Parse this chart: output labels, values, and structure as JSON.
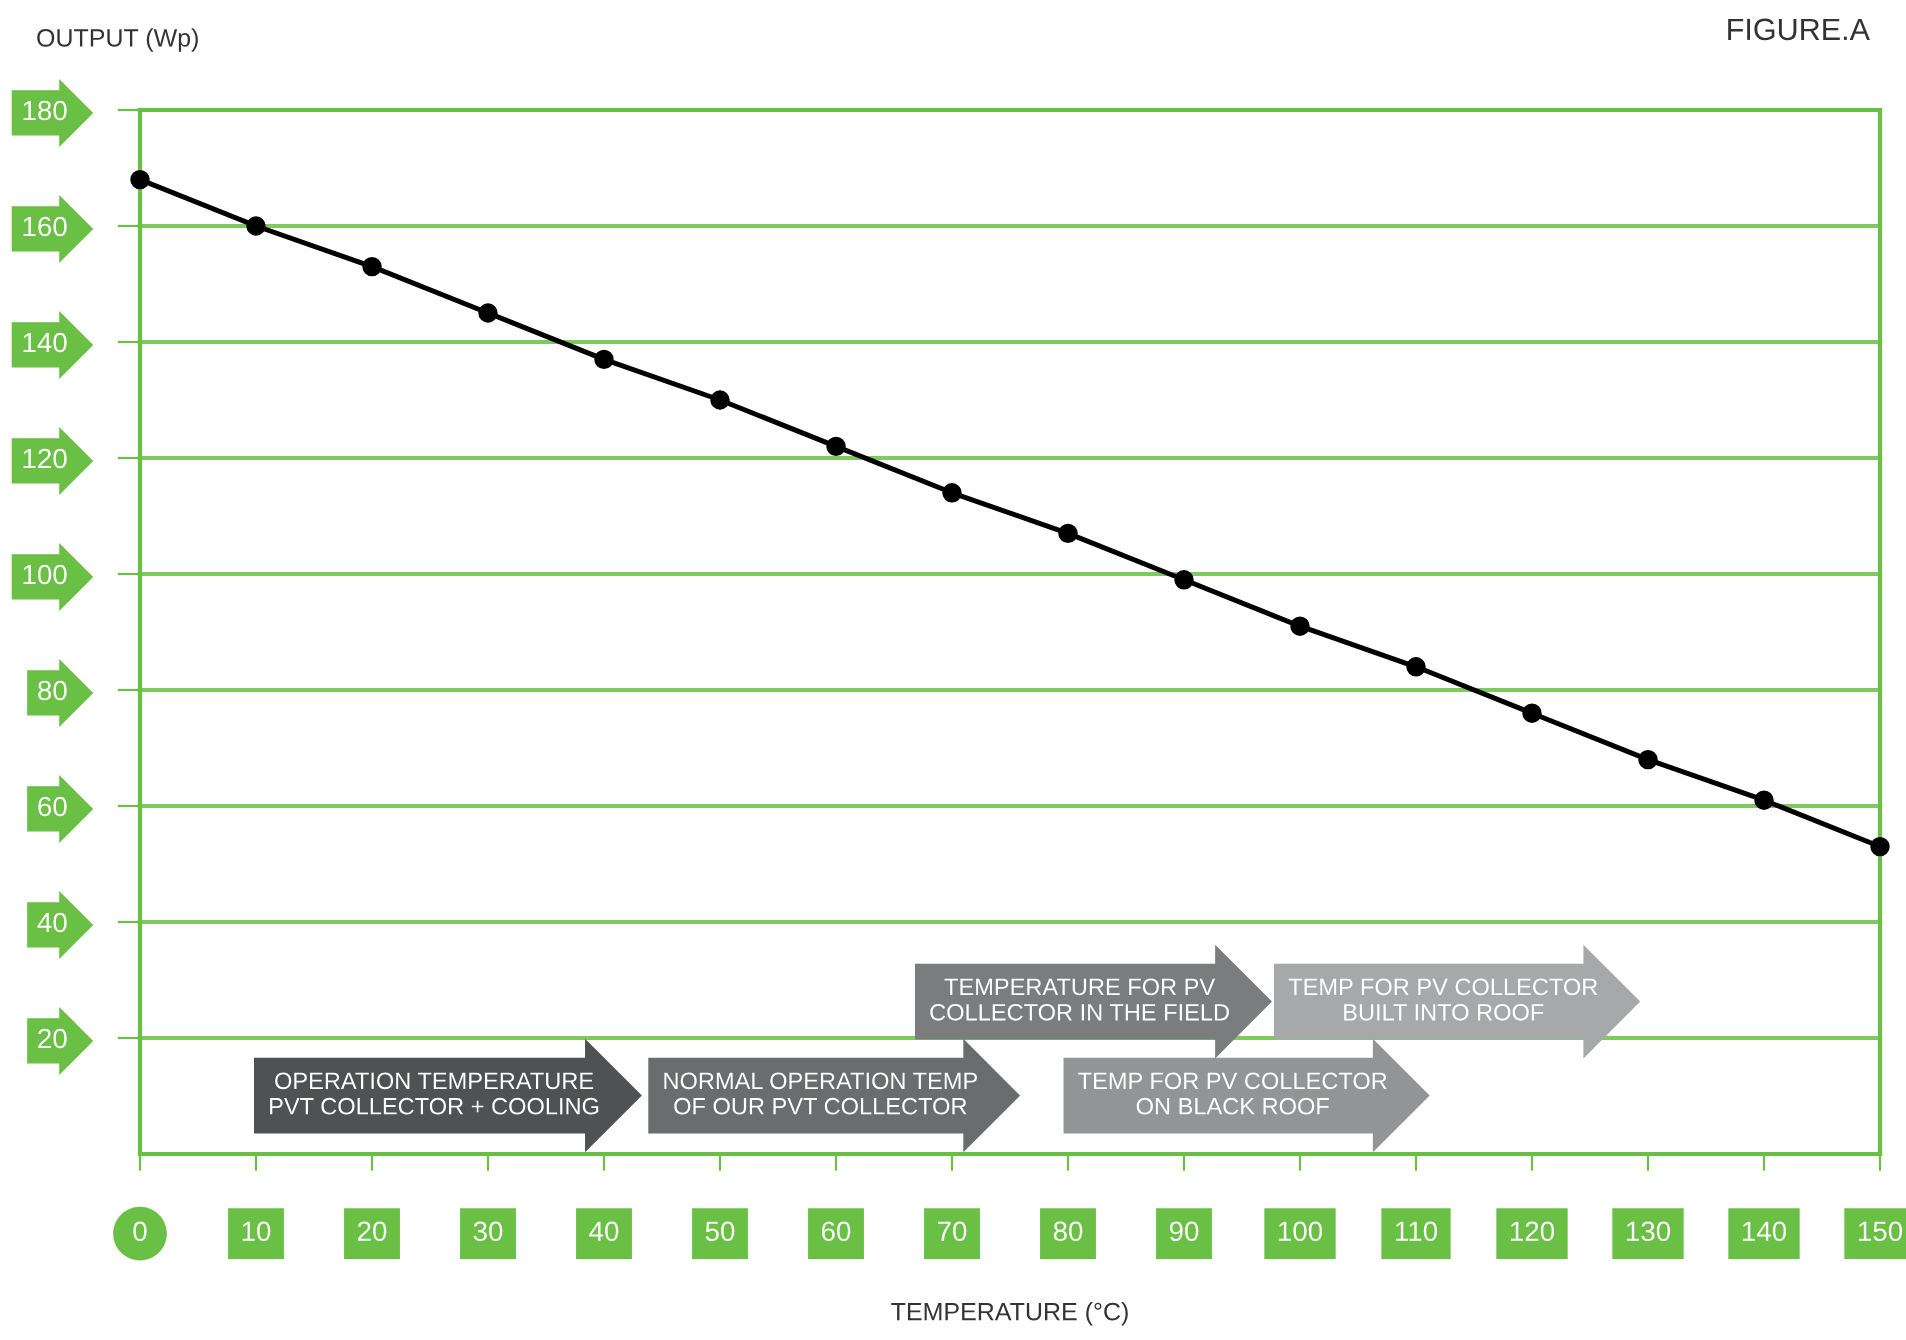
{
  "chart_data": {
    "type": "line",
    "title": "FIGURE.A",
    "xlabel": "TEMPERATURE (°C)",
    "ylabel": "OUTPUT (Wp)",
    "x": [
      0,
      10,
      20,
      30,
      40,
      50,
      60,
      70,
      80,
      90,
      100,
      110,
      120,
      130,
      140,
      150
    ],
    "series": [
      {
        "color": "#000000",
        "values": [
          168,
          160,
          153,
          145,
          137,
          130,
          122,
          114,
          107,
          99,
          91,
          84,
          76,
          68,
          61,
          53
        ]
      }
    ],
    "xlim": [
      0,
      150
    ],
    "ylim": [
      0,
      180
    ],
    "xticks": [
      0,
      10,
      20,
      30,
      40,
      50,
      60,
      70,
      80,
      90,
      100,
      110,
      120,
      130,
      140,
      150
    ],
    "yticks": [
      20,
      40,
      60,
      80,
      100,
      120,
      140,
      160,
      180
    ],
    "grid": "y",
    "marker": "circle",
    "line_style": "solid",
    "annotations": [
      "OPERATION TEMPERATURE\nPVT COLLECTOR + COOLING",
      "NORMAL OPERATION TEMP\nOF OUR PVT COLLECTOR",
      "TEMPERATURE FOR PV\nCOLLECTOR IN THE FIELD",
      "TEMP FOR PV COLLECTOR\nON BLACK ROOF",
      "TEMP FOR PV COLLECTOR\nBUILT INTO ROOF"
    ]
  }
}
